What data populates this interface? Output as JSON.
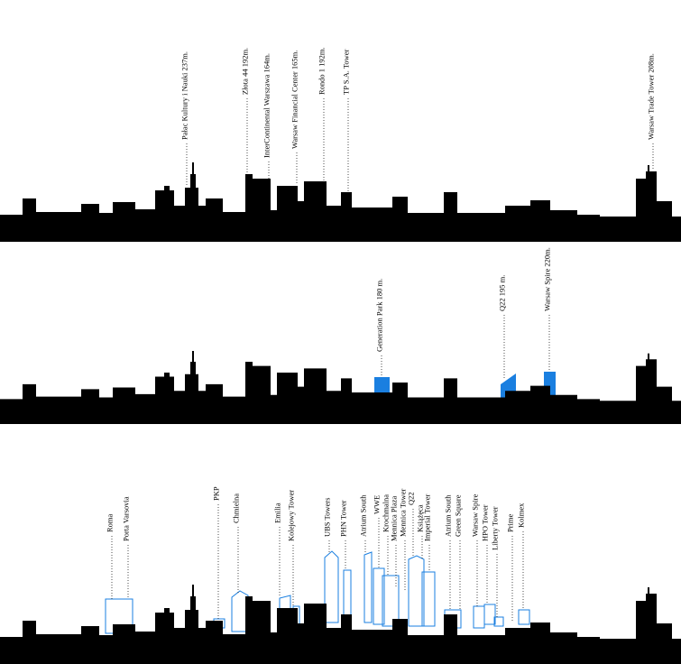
{
  "panels": [
    {
      "labels": [
        "Pałac Kultury i Nauki 237m.",
        "Złota 44 192m.",
        "InterContinental Warszawa 164m.",
        "Warsaw Financial Center 165m.",
        "Rondo 1 192m.",
        "TP S.A. Tower",
        "Warsaw Trade Tower 208m."
      ]
    },
    {
      "labels": [
        "Generation Park 180 m.",
        "Q22 195 m.",
        "Warsaw Spire 220m."
      ]
    },
    {
      "labels": [
        "Roma",
        "Porta Varsovia",
        "PKP",
        "Chmielna",
        "Emilia",
        "Kolejowy Tower",
        "UBS Towers",
        "PHN Tower",
        "Atrium South",
        "WWE",
        "Krochmalna",
        "Mennica Plaza",
        "Mennica Tower",
        "Q22",
        "Książęca",
        "Imperial Tower",
        "Atrium South",
        "Green Square",
        "Warsaw Spire",
        "HPO Tower",
        "Liberty Tower",
        "Prime",
        "Kolmex"
      ]
    }
  ]
}
